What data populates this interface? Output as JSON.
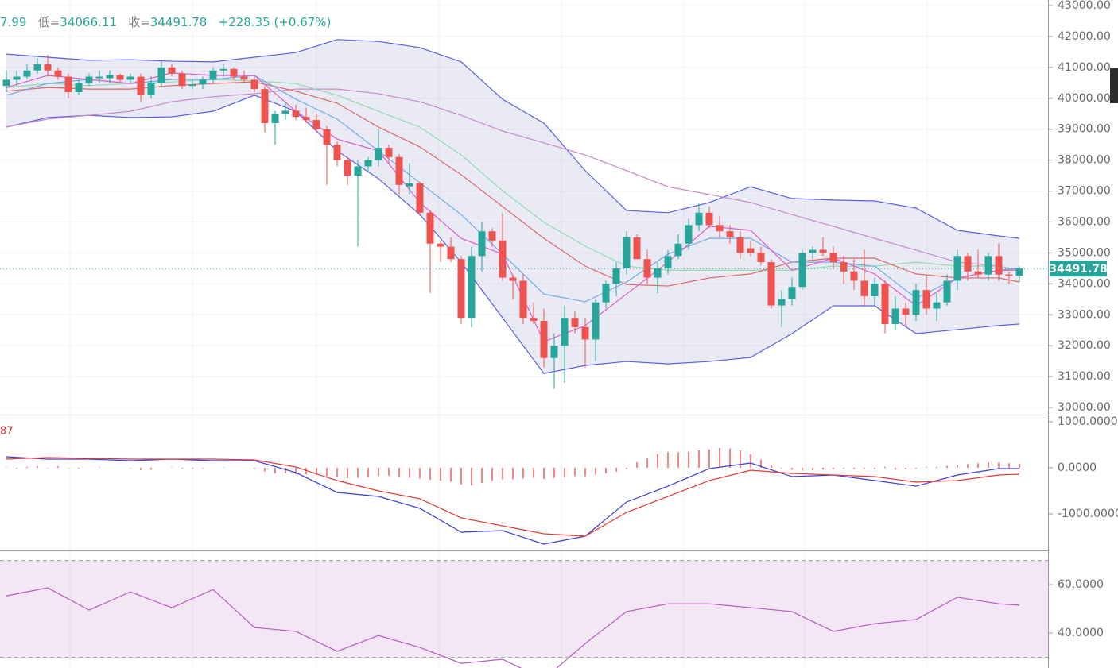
{
  "header": {
    "high_fragment": "7.99",
    "low_label": "低=",
    "low": "34066.11",
    "close_label": "收=",
    "close": "34491.78",
    "change": "+228.35 (+0.67%)"
  },
  "chart_data": [
    {
      "type": "candlestick",
      "up_color": "#26a69a",
      "down_color": "#ef5350",
      "open": [
        40400,
        40600,
        40700,
        40900,
        41100,
        40900,
        40700,
        40200,
        40500,
        40650,
        40650,
        40750,
        40600,
        40700,
        40100,
        40500,
        41000,
        40800,
        40400,
        40450,
        40600,
        40900,
        40950,
        40700,
        40600,
        40300,
        39200,
        39500,
        39600,
        39400,
        39300,
        39000,
        38500,
        38000,
        37500,
        37800,
        38000,
        38400,
        38100,
        37150,
        37250,
        36300,
        35300,
        35200,
        34800,
        32900,
        34900,
        35700,
        35400,
        34200,
        34100,
        32900,
        32800,
        31600,
        32000,
        32900,
        32600,
        32200,
        33400,
        34000,
        34500,
        35500,
        34800,
        34200,
        34500,
        34900,
        35300,
        35900,
        36300,
        35900,
        35700,
        35500,
        35150,
        35000,
        34700,
        33300,
        33500,
        33900,
        35000,
        35100,
        35000,
        34700,
        34400,
        34100,
        33600,
        34000,
        32700,
        33200,
        33000,
        33800,
        33200,
        33400,
        34100,
        34900,
        34400,
        34300,
        34900,
        34300,
        34260
      ],
      "high": [
        40900,
        40900,
        41100,
        41300,
        41400,
        41000,
        40800,
        40600,
        40800,
        40900,
        40900,
        40800,
        40800,
        40800,
        40700,
        41200,
        41100,
        40900,
        40600,
        40700,
        41000,
        41100,
        41000,
        40900,
        40700,
        40400,
        39600,
        39900,
        39800,
        39700,
        39500,
        39100,
        38600,
        38100,
        38000,
        38100,
        39000,
        38500,
        38200,
        37900,
        37300,
        36400,
        35400,
        35500,
        34900,
        35200,
        36000,
        35800,
        36300,
        34300,
        34300,
        33400,
        33200,
        32400,
        33300,
        33100,
        32900,
        33500,
        34100,
        34700,
        35700,
        35600,
        35100,
        34700,
        35100,
        35600,
        36100,
        36600,
        36500,
        36200,
        35900,
        35700,
        35400,
        35200,
        34800,
        33800,
        34200,
        35100,
        35200,
        35500,
        35200,
        34900,
        34800,
        35100,
        34200,
        34100,
        33600,
        33400,
        34000,
        34300,
        33700,
        34300,
        35100,
        35000,
        35100,
        35000,
        35300,
        34400,
        34560
      ],
      "low": [
        40200,
        40400,
        40600,
        40800,
        40700,
        40600,
        40000,
        40100,
        40400,
        40500,
        40500,
        40500,
        40500,
        39900,
        40000,
        40400,
        40700,
        40300,
        40300,
        40300,
        40500,
        40700,
        40600,
        40500,
        40200,
        38900,
        38500,
        39300,
        39300,
        39200,
        38900,
        37200,
        37800,
        37200,
        35200,
        37600,
        37800,
        37900,
        36900,
        36900,
        36200,
        33700,
        34700,
        34700,
        32700,
        32600,
        34400,
        35200,
        34100,
        33500,
        32700,
        32700,
        31300,
        30600,
        30800,
        32400,
        31300,
        31500,
        33200,
        33600,
        34300,
        34800,
        34000,
        33700,
        34300,
        34800,
        35100,
        35700,
        35800,
        35500,
        35300,
        34800,
        34900,
        34600,
        33200,
        32600,
        33300,
        33800,
        34800,
        34900,
        34500,
        34000,
        33800,
        33300,
        33300,
        32400,
        32500,
        32600,
        32800,
        33000,
        32800,
        33300,
        33800,
        34100,
        34200,
        34100,
        34100,
        34000,
        34066.11
      ],
      "close": [
        40600,
        40700,
        40900,
        41100,
        40900,
        40700,
        40200,
        40500,
        40700,
        40700,
        40750,
        40600,
        40700,
        40100,
        40500,
        41000,
        40800,
        40400,
        40450,
        40600,
        40900,
        40950,
        40700,
        40600,
        40300,
        39200,
        39500,
        39600,
        39400,
        39300,
        39000,
        38500,
        38000,
        37500,
        37800,
        38000,
        38400,
        38100,
        37200,
        37250,
        36300,
        35300,
        35200,
        34800,
        32900,
        34900,
        35700,
        35400,
        34200,
        34100,
        32900,
        32800,
        31600,
        32000,
        32900,
        32600,
        32200,
        33400,
        34000,
        34500,
        35500,
        34800,
        34200,
        34500,
        34900,
        35300,
        35900,
        36300,
        35900,
        35700,
        35500,
        35000,
        35000,
        34700,
        33300,
        33500,
        33900,
        35000,
        35100,
        35000,
        34700,
        34400,
        34100,
        33600,
        34000,
        32700,
        33200,
        33000,
        33800,
        33200,
        33400,
        34100,
        34900,
        34400,
        34300,
        34900,
        34300,
        34260,
        34491.78
      ],
      "ylim": [
        29770,
        43180
      ],
      "yticks": [
        {
          "value": 30000,
          "label": "30000.00"
        },
        {
          "value": 31000,
          "label": "31000.00"
        },
        {
          "value": 32000,
          "label": "32000.00"
        },
        {
          "value": 33000,
          "label": "33000.00"
        },
        {
          "value": 34000,
          "label": "34000.00"
        },
        {
          "value": 35000,
          "label": "35000.00"
        },
        {
          "value": 36000,
          "label": "36000.00"
        },
        {
          "value": 37000,
          "label": "37000.00"
        },
        {
          "value": 38000,
          "label": "38000.00"
        },
        {
          "value": 39000,
          "label": "39000.00"
        },
        {
          "value": 40000,
          "label": "40000.00"
        },
        {
          "value": 41000,
          "label": "41000.00"
        },
        {
          "value": 42000,
          "label": "42000.00"
        },
        {
          "value": 43000,
          "label": "43000.00"
        }
      ],
      "grid": true,
      "last_price": {
        "value": 34491.78,
        "label": "34491.78"
      },
      "overlay_x": [
        0,
        4,
        8,
        12,
        16,
        20,
        24,
        28,
        32,
        36,
        40,
        44,
        48,
        52,
        56,
        60,
        64,
        68,
        72,
        76,
        80,
        84,
        88,
        92,
        96,
        98
      ],
      "band": {
        "color": "#5b5fe6",
        "fill": "rgba(90,90,180,0.13)",
        "upper": [
          41430,
          41330,
          41230,
          41250,
          41200,
          41180,
          41330,
          41480,
          41900,
          41840,
          41640,
          41180,
          39970,
          39200,
          37660,
          36370,
          36300,
          36630,
          37140,
          36760,
          36710,
          36680,
          36450,
          35730,
          35550,
          35470
        ],
        "lower": [
          39070,
          39380,
          39450,
          39380,
          39400,
          39580,
          40100,
          39580,
          38300,
          37400,
          36240,
          34700,
          32900,
          31100,
          31360,
          31490,
          31410,
          31490,
          31620,
          32390,
          33290,
          33290,
          32390,
          32520,
          32650,
          32700
        ]
      },
      "overlays": [
        {
          "color": "#c88ac8",
          "values": [
            39070,
            39330,
            39450,
            39580,
            39890,
            40050,
            40150,
            40300,
            40300,
            40150,
            39890,
            39450,
            38940,
            38560,
            38170,
            37660,
            37140,
            36890,
            36630,
            36240,
            35860,
            35470,
            35090,
            34700,
            34570,
            34440
          ]
        },
        {
          "color": "#8fdcae",
          "values": [
            40350,
            40480,
            40410,
            40480,
            40530,
            40610,
            40560,
            40480,
            40100,
            39580,
            39070,
            38170,
            37010,
            35990,
            35220,
            34570,
            34440,
            34440,
            34440,
            34440,
            34570,
            34570,
            34700,
            34570,
            34570,
            34440
          ]
        },
        {
          "color": "#e06666",
          "values": [
            40230,
            40350,
            40300,
            40300,
            40410,
            40480,
            40530,
            40230,
            39840,
            39070,
            38430,
            37530,
            36500,
            35470,
            34570,
            33980,
            33930,
            34190,
            34320,
            34700,
            34830,
            34830,
            34320,
            34190,
            34190,
            34060
          ]
        },
        {
          "color": "#6fa8f0",
          "values": [
            40100,
            40480,
            40610,
            40480,
            40610,
            40610,
            40740,
            39970,
            39330,
            38300,
            37270,
            36240,
            34960,
            33670,
            33420,
            34060,
            34960,
            35470,
            35470,
            34700,
            34700,
            34570,
            33540,
            34190,
            34440,
            34500
          ]
        },
        {
          "color": "#e05cc8",
          "values": [
            40350,
            40740,
            40610,
            40480,
            40820,
            40740,
            40740,
            39580,
            38680,
            38300,
            36630,
            35470,
            34960,
            32130,
            32650,
            33670,
            34700,
            35860,
            35730,
            34440,
            34830,
            34320,
            33290,
            34190,
            34440,
            34440
          ]
        }
      ]
    },
    {
      "type": "macd",
      "label": "87",
      "label_color": "#d32f2f",
      "hist": {
        "color": "#ef5350",
        "values": [
          10,
          -20,
          20,
          30,
          -10,
          30,
          -10,
          -20,
          0,
          10,
          0,
          0,
          -10,
          -50,
          -40,
          0,
          10,
          -20,
          -20,
          -10,
          0,
          10,
          0,
          0,
          -20,
          -80,
          -120,
          -120,
          -140,
          -140,
          -150,
          -180,
          -200,
          -230,
          -220,
          -200,
          -180,
          -170,
          -200,
          -210,
          -230,
          -260,
          -280,
          -300,
          -360,
          -380,
          -330,
          -280,
          -250,
          -250,
          -230,
          -220,
          -240,
          -220,
          -200,
          -180,
          -180,
          -150,
          -120,
          -80,
          -30,
          120,
          220,
          300,
          340,
          340,
          350,
          380,
          400,
          430,
          420,
          380,
          300,
          180,
          60,
          -20,
          -40,
          -60,
          -50,
          -40,
          -30,
          -20,
          -30,
          -20,
          -30,
          20,
          -40,
          -30,
          -20,
          10,
          20,
          40,
          60,
          80,
          100,
          120,
          110,
          100,
          90
        ]
      },
      "x": [
        0,
        4,
        8,
        12,
        16,
        20,
        24,
        28,
        32,
        36,
        40,
        44,
        48,
        52,
        56,
        60,
        64,
        68,
        72,
        76,
        80,
        84,
        88,
        92,
        96,
        98
      ],
      "series": [
        {
          "color": "#3b3fd8",
          "values": [
            241,
            190,
            190,
            155,
            190,
            155,
            155,
            -103,
            -534,
            -621,
            -879,
            -1397,
            -1362,
            -1655,
            -1483,
            -741,
            -397,
            -17,
            103,
            -190,
            -155,
            -276,
            -397,
            -155,
            -17,
            -17
          ]
        },
        {
          "color": "#e53935",
          "values": [
            190,
            224,
            207,
            190,
            190,
            190,
            172,
            17,
            -276,
            -500,
            -672,
            -1086,
            -1259,
            -1431,
            -1483,
            -966,
            -621,
            -276,
            -52,
            -121,
            -155,
            -190,
            -310,
            -276,
            -155,
            -138
          ]
        }
      ],
      "ylim": [
        -1793,
        1138
      ],
      "yticks": [
        {
          "value": 1000,
          "label": "1000.0000"
        },
        {
          "value": 0,
          "label": "0.0000"
        },
        {
          "value": -1000,
          "label": "-1000.0000"
        }
      ]
    },
    {
      "type": "line",
      "x": [
        0,
        4,
        8,
        12,
        16,
        20,
        24,
        28,
        32,
        36,
        40,
        44,
        48,
        52,
        56,
        60,
        64,
        68,
        72,
        76,
        80,
        84,
        88,
        92,
        96,
        98
      ],
      "series": [
        {
          "color": "#b45cc4",
          "values": [
            55.4,
            58.7,
            49.5,
            57.0,
            50.5,
            58.0,
            42.3,
            40.7,
            32.5,
            39.0,
            34.1,
            27.5,
            29.2,
            21.0,
            35.7,
            48.9,
            52.1,
            52.1,
            50.5,
            48.9,
            40.7,
            43.9,
            45.6,
            54.8,
            52.1,
            51.5
          ]
        }
      ],
      "band": [
        30,
        70
      ],
      "band_fill": "rgba(190,120,200,0.18)",
      "ylim": [
        25.6,
        73.8
      ],
      "yticks": [
        {
          "value": 60,
          "label": "60.0000"
        },
        {
          "value": 40,
          "label": "40.0000"
        }
      ]
    }
  ]
}
